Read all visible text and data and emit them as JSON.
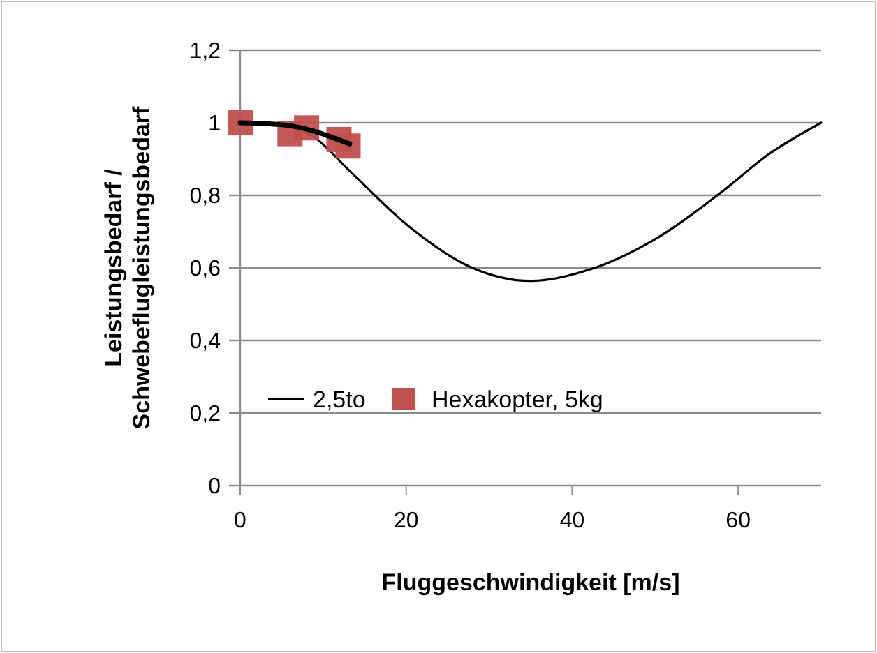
{
  "chart_data": {
    "type": "line",
    "xlabel": "Fluggeschwindigkeit [m/s]",
    "ylabel": "Leistungsbedarf / Schwebeflugleistungsbedarf",
    "xlim": [
      0,
      70
    ],
    "xticks": [
      0,
      20,
      40,
      60
    ],
    "ylim": [
      0,
      1.2
    ],
    "yticks": [
      0,
      {
        "value": 0.2,
        "label": "0,2"
      },
      {
        "value": 0.4,
        "label": "0,4"
      },
      {
        "value": 0.6,
        "label": "0,6"
      },
      {
        "value": 0.8,
        "label": "0,8"
      },
      1,
      {
        "value": 1.2,
        "label": "1,2"
      }
    ],
    "grid": "y",
    "legend": "bottom",
    "series": [
      {
        "name": "2,5to",
        "color": "#000000",
        "x": [
          0,
          5.3,
          8.7,
          13.2,
          20.4,
          27.7,
          35.0,
          42.3,
          49.6,
          58.0,
          63.6,
          70
        ],
        "values": [
          1,
          0.994,
          0.964,
          0.867,
          0.713,
          0.603,
          0.564,
          0.597,
          0.674,
          0.809,
          0.912,
          1.0
        ]
      },
      {
        "name": "Hexakopter, 5kg",
        "type": "scatter",
        "marker": "square",
        "color": "#c0504d",
        "x": [
          0,
          6.0,
          8.0,
          11.9,
          13.0
        ],
        "values": [
          1,
          0.97,
          0.986,
          0.954,
          0.936
        ]
      },
      {
        "color": "#000000",
        "x": [
          0,
          5.3,
          13.2
        ],
        "values": [
          1,
          0.994,
          0.942
        ]
      }
    ]
  }
}
